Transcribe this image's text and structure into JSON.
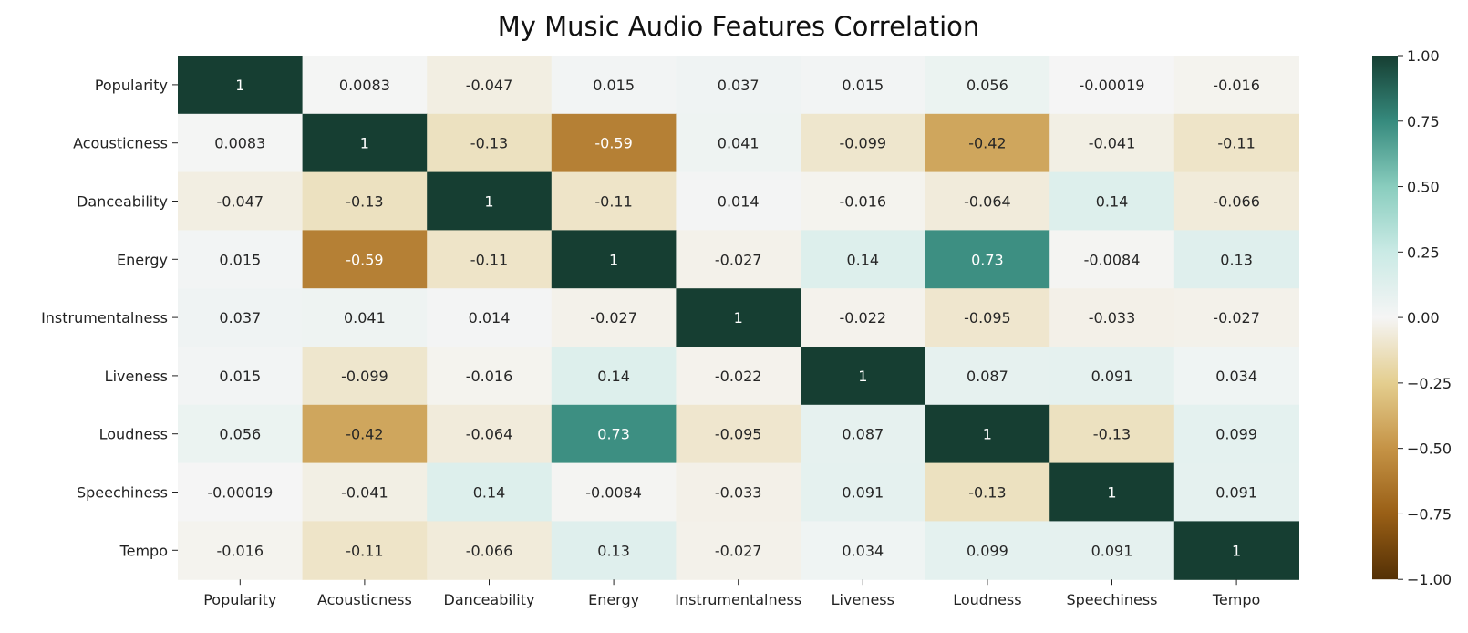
{
  "chart_data": {
    "type": "heatmap",
    "title": "My Music Audio Features Correlation",
    "xlabel": "",
    "ylabel": "",
    "rows": [
      "Popularity",
      "Acousticness",
      "Danceability",
      "Energy",
      "Instrumentalness",
      "Liveness",
      "Loudness",
      "Speechiness",
      "Tempo"
    ],
    "columns": [
      "Popularity",
      "Acousticness",
      "Danceability",
      "Energy",
      "Instrumentalness",
      "Liveness",
      "Loudness",
      "Speechiness",
      "Tempo"
    ],
    "values": [
      [
        1,
        0.0083,
        -0.047,
        0.015,
        0.037,
        0.015,
        0.056,
        -0.00019,
        -0.016
      ],
      [
        0.0083,
        1,
        -0.13,
        -0.59,
        0.041,
        -0.099,
        -0.42,
        -0.041,
        -0.11
      ],
      [
        -0.047,
        -0.13,
        1,
        -0.11,
        0.014,
        -0.016,
        -0.064,
        0.14,
        -0.066
      ],
      [
        0.015,
        -0.59,
        -0.11,
        1,
        -0.027,
        0.14,
        0.73,
        -0.0084,
        0.13
      ],
      [
        0.037,
        0.041,
        0.014,
        -0.027,
        1,
        -0.022,
        -0.095,
        -0.033,
        -0.027
      ],
      [
        0.015,
        -0.099,
        -0.016,
        0.14,
        -0.022,
        1,
        0.087,
        0.091,
        0.034
      ],
      [
        0.056,
        -0.42,
        -0.064,
        0.73,
        -0.095,
        0.087,
        1,
        -0.13,
        0.099
      ],
      [
        -0.00019,
        -0.041,
        0.14,
        -0.0084,
        -0.033,
        0.091,
        -0.13,
        1,
        0.091
      ],
      [
        -0.016,
        -0.11,
        -0.066,
        0.13,
        -0.027,
        0.034,
        0.099,
        0.091,
        1
      ]
    ],
    "colormap": "BrBG",
    "vmin": -1.0,
    "vmax": 1.0,
    "colorbar_ticks": [
      "1.00",
      "0.75",
      "0.50",
      "0.25",
      "0.00",
      "−0.25",
      "−0.50",
      "−0.75",
      "−1.00"
    ],
    "colorbar_tick_values": [
      1.0,
      0.75,
      0.5,
      0.25,
      0.0,
      -0.25,
      -0.5,
      -0.75,
      -1.0
    ],
    "annotations": true,
    "legend": "colorbar-right"
  }
}
